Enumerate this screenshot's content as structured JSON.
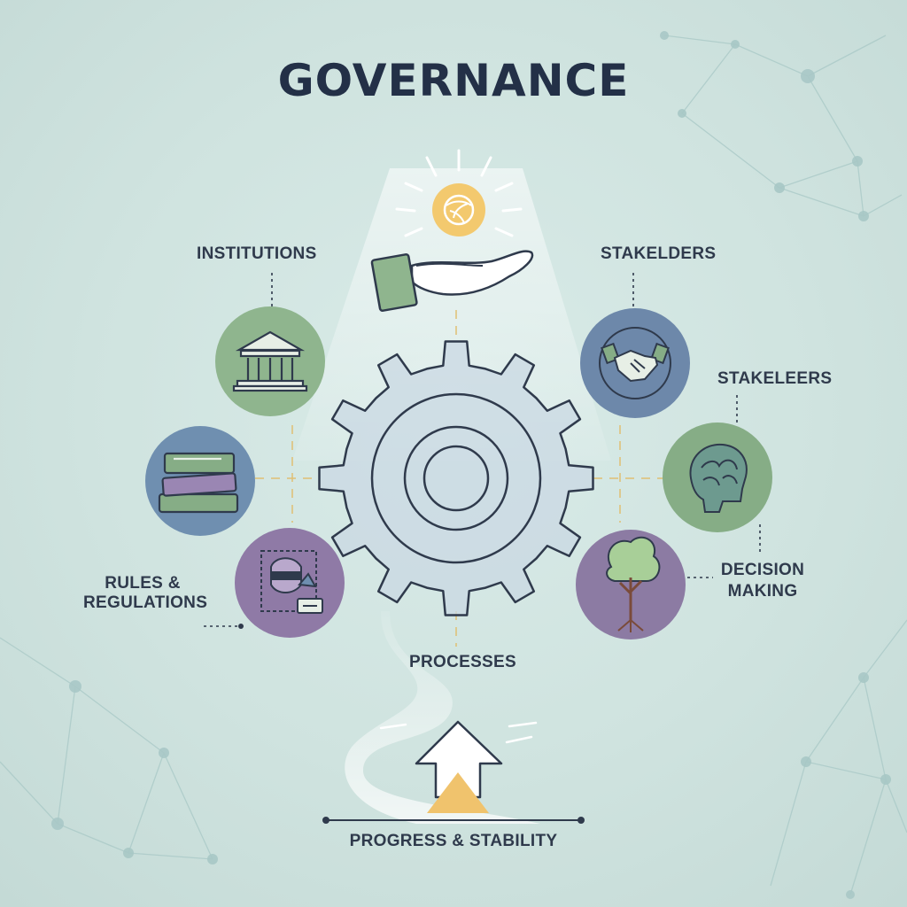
{
  "title": "GOVERNANCE",
  "labels": {
    "institutions": "INSTITUTIONS",
    "stakeholders_top": "STAKELDERS",
    "stakeholders_right": "STAKELEERS",
    "rules_line1": "RULES &",
    "rules_line2": "REGULATIONS",
    "decision_line1": "DECISION",
    "decision_line2": "MAKING",
    "processes": "PROCESSES",
    "progress": "PROGRESS & STABILITY"
  },
  "nodes": [
    {
      "id": "institutions",
      "icon": "bank-building-icon",
      "color": "#8fb58e"
    },
    {
      "id": "rules",
      "icon": "books-stack-icon",
      "color": "#6f8fb0"
    },
    {
      "id": "regulations",
      "icon": "rules-document-icon",
      "color": "#8f7aa6"
    },
    {
      "id": "stakeholders",
      "icon": "handshake-icon",
      "color": "#6d88aa"
    },
    {
      "id": "stakeleers",
      "icon": "brain-head-icon",
      "color": "#86ad86"
    },
    {
      "id": "decision",
      "icon": "tree-icon",
      "color": "#8c7ba3"
    }
  ],
  "colors": {
    "accent_gold": "#f0c36d",
    "gear": "#c9d8e3",
    "text": "#233047"
  }
}
